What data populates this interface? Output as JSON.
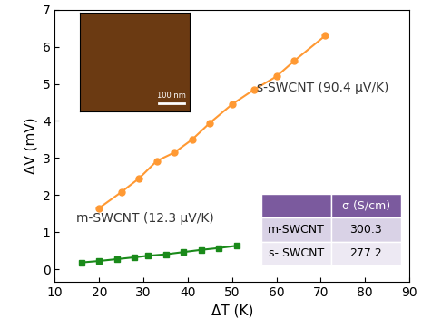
{
  "chart_data": {
    "type": "line",
    "x_label": "ΔT (K)",
    "y_label": "ΔV (mV)",
    "series": [
      {
        "name": "s-SWCNT (90.4 μV/K)",
        "color": "#ff9933",
        "marker": "circle",
        "line_style": "solid",
        "x": [
          20,
          25,
          29,
          33,
          37,
          41,
          45,
          50,
          55,
          60,
          64,
          71
        ],
        "values": [
          1.65,
          2.08,
          2.45,
          2.92,
          3.15,
          3.5,
          3.95,
          4.45,
          4.85,
          5.2,
          5.62,
          6.3
        ]
      },
      {
        "name": "m-SWCNT (12.3 μV/K)",
        "color": "#1a8a1a",
        "marker": "square",
        "line_style": "solid",
        "x": [
          16,
          20,
          24,
          28,
          31,
          35,
          39,
          43,
          47,
          51
        ],
        "values": [
          0.18,
          0.22,
          0.27,
          0.32,
          0.36,
          0.4,
          0.46,
          0.52,
          0.57,
          0.63
        ]
      }
    ],
    "xlim": [
      10,
      90
    ],
    "xticks": [
      10,
      20,
      30,
      40,
      50,
      60,
      70,
      80,
      90
    ],
    "ylim": [
      -0.35,
      7
    ],
    "yticks": [
      0,
      1,
      2,
      3,
      4,
      5,
      6,
      7
    ],
    "annotations": [
      "100 nm"
    ],
    "table": {
      "column": "σ (S/cm)",
      "rows": [
        [
          "m-SWCNT",
          300.3
        ],
        [
          "s- SWCNT",
          277.2
        ]
      ]
    }
  }
}
